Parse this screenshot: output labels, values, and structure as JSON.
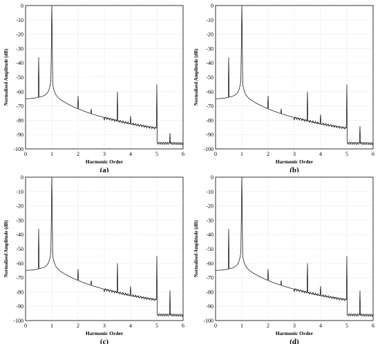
{
  "chart_data": [
    {
      "type": "line",
      "panel_label": "(a)",
      "xlabel": "Harmonic Order",
      "ylabel": "Normalised Amplitude (dB)",
      "xlim": [
        0,
        6
      ],
      "ylim": [
        -100,
        0
      ],
      "xticks": [
        "0",
        "1",
        "2",
        "3",
        "4",
        "5",
        "6"
      ],
      "yticks": [
        "0",
        "-10",
        "-20",
        "-30",
        "-40",
        "-50",
        "-60",
        "-70",
        "-80",
        "-90",
        "-100"
      ],
      "grid": true,
      "peaks": [
        {
          "x": 0.5,
          "y": -36
        },
        {
          "x": 1.0,
          "y": 0
        },
        {
          "x": 2.0,
          "y": -63
        },
        {
          "x": 2.5,
          "y": -72
        },
        {
          "x": 3.0,
          "y": -80
        },
        {
          "x": 3.5,
          "y": -60
        },
        {
          "x": 4.0,
          "y": -77
        },
        {
          "x": 5.0,
          "y": -55
        },
        {
          "x": 5.5,
          "y": -89
        }
      ]
    },
    {
      "type": "line",
      "panel_label": "(b)",
      "xlabel": "Harmonic Order",
      "ylabel": "Normalised Amplitude (dB)",
      "xlim": [
        0,
        6
      ],
      "ylim": [
        -100,
        0
      ],
      "xticks": [
        "0",
        "1",
        "2",
        "3",
        "4",
        "5",
        "6"
      ],
      "yticks": [
        "0",
        "-10",
        "-20",
        "-30",
        "-40",
        "-50",
        "-60",
        "-70",
        "-80",
        "-90",
        "-100"
      ],
      "grid": true,
      "peaks": [
        {
          "x": 0.5,
          "y": -36
        },
        {
          "x": 1.0,
          "y": 0
        },
        {
          "x": 2.0,
          "y": -63
        },
        {
          "x": 2.5,
          "y": -72
        },
        {
          "x": 3.0,
          "y": -80
        },
        {
          "x": 3.5,
          "y": -60
        },
        {
          "x": 4.0,
          "y": -76
        },
        {
          "x": 5.0,
          "y": -55
        },
        {
          "x": 5.5,
          "y": -84
        }
      ]
    },
    {
      "type": "line",
      "panel_label": "(c)",
      "xlabel": "Harmonic Order",
      "ylabel": "Normalised Amplitude (dB)",
      "xlim": [
        0,
        6
      ],
      "ylim": [
        -100,
        0
      ],
      "xticks": [
        "0",
        "1",
        "2",
        "3",
        "4",
        "5",
        "6"
      ],
      "yticks": [
        "0",
        "-10",
        "-20",
        "-30",
        "-40",
        "-50",
        "-60",
        "-70",
        "-80",
        "-90",
        "-100"
      ],
      "grid": true,
      "peaks": [
        {
          "x": 0.5,
          "y": -36
        },
        {
          "x": 1.0,
          "y": 0
        },
        {
          "x": 2.0,
          "y": -64
        },
        {
          "x": 2.5,
          "y": -72
        },
        {
          "x": 3.0,
          "y": -80
        },
        {
          "x": 3.5,
          "y": -60
        },
        {
          "x": 4.0,
          "y": -76
        },
        {
          "x": 5.0,
          "y": -55
        },
        {
          "x": 5.5,
          "y": -79
        }
      ]
    },
    {
      "type": "line",
      "panel_label": "(d)",
      "xlabel": "Harmonic Order",
      "ylabel": "Normalised Amplitude (dB)",
      "xlim": [
        0,
        6
      ],
      "ylim": [
        -100,
        0
      ],
      "xticks": [
        "0",
        "1",
        "2",
        "3",
        "4",
        "5",
        "6"
      ],
      "yticks": [
        "0",
        "-10",
        "-20",
        "-30",
        "-40",
        "-50",
        "-60",
        "-70",
        "-80",
        "-90",
        "-100"
      ],
      "grid": true,
      "peaks": [
        {
          "x": 0.5,
          "y": -36
        },
        {
          "x": 1.0,
          "y": 0
        },
        {
          "x": 2.0,
          "y": -64
        },
        {
          "x": 2.5,
          "y": -72
        },
        {
          "x": 3.0,
          "y": -80
        },
        {
          "x": 3.5,
          "y": -60
        },
        {
          "x": 4.0,
          "y": -76
        },
        {
          "x": 5.0,
          "y": -55
        },
        {
          "x": 5.5,
          "y": -79
        }
      ]
    }
  ]
}
